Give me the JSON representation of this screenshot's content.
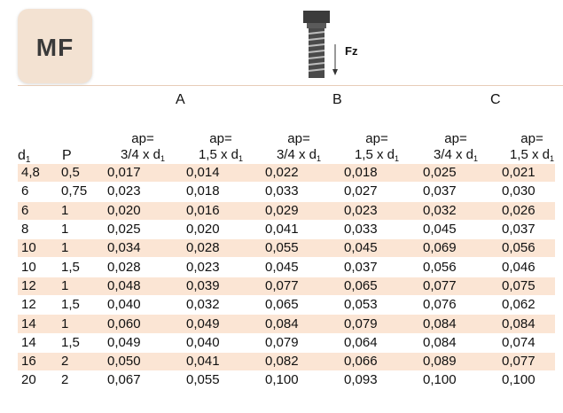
{
  "logo": {
    "text": "MF"
  },
  "illustration": {
    "label": "Fz"
  },
  "groups": [
    "A",
    "B",
    "C"
  ],
  "header": {
    "d1": "d",
    "d1_sub": "1",
    "p": "P",
    "ap_top": "ap=",
    "ap_small": "3/4 x d",
    "ap_large": "1,5 x d",
    "sub": "1"
  },
  "rows": [
    {
      "d1": "4,8",
      "p": "0,5",
      "v": [
        "0,017",
        "0,014",
        "0,022",
        "0,018",
        "0,025",
        "0,021"
      ]
    },
    {
      "d1": "6",
      "p": "0,75",
      "v": [
        "0,023",
        "0,018",
        "0,033",
        "0,027",
        "0,037",
        "0,030"
      ]
    },
    {
      "d1": "6",
      "p": "1",
      "v": [
        "0,020",
        "0,016",
        "0,029",
        "0,023",
        "0,032",
        "0,026"
      ]
    },
    {
      "d1": "8",
      "p": "1",
      "v": [
        "0,025",
        "0,020",
        "0,041",
        "0,033",
        "0,045",
        "0,037"
      ]
    },
    {
      "d1": "10",
      "p": "1",
      "v": [
        "0,034",
        "0,028",
        "0,055",
        "0,045",
        "0,069",
        "0,056"
      ]
    },
    {
      "d1": "10",
      "p": "1,5",
      "v": [
        "0,028",
        "0,023",
        "0,045",
        "0,037",
        "0,056",
        "0,046"
      ]
    },
    {
      "d1": "12",
      "p": "1",
      "v": [
        "0,048",
        "0,039",
        "0,077",
        "0,065",
        "0,077",
        "0,075"
      ]
    },
    {
      "d1": "12",
      "p": "1,5",
      "v": [
        "0,040",
        "0,032",
        "0,065",
        "0,053",
        "0,076",
        "0,062"
      ]
    },
    {
      "d1": "14",
      "p": "1",
      "v": [
        "0,060",
        "0,049",
        "0,084",
        "0,079",
        "0,084",
        "0,084"
      ]
    },
    {
      "d1": "14",
      "p": "1,5",
      "v": [
        "0,049",
        "0,040",
        "0,079",
        "0,064",
        "0,084",
        "0,074"
      ]
    },
    {
      "d1": "16",
      "p": "2",
      "v": [
        "0,050",
        "0,041",
        "0,082",
        "0,066",
        "0,089",
        "0,077"
      ]
    },
    {
      "d1": "20",
      "p": "2",
      "v": [
        "0,067",
        "0,055",
        "0,100",
        "0,093",
        "0,100",
        "0,100"
      ]
    }
  ],
  "colors": {
    "row_shade": "#fbe5d4",
    "logo_bg": "#f3e2d2"
  }
}
